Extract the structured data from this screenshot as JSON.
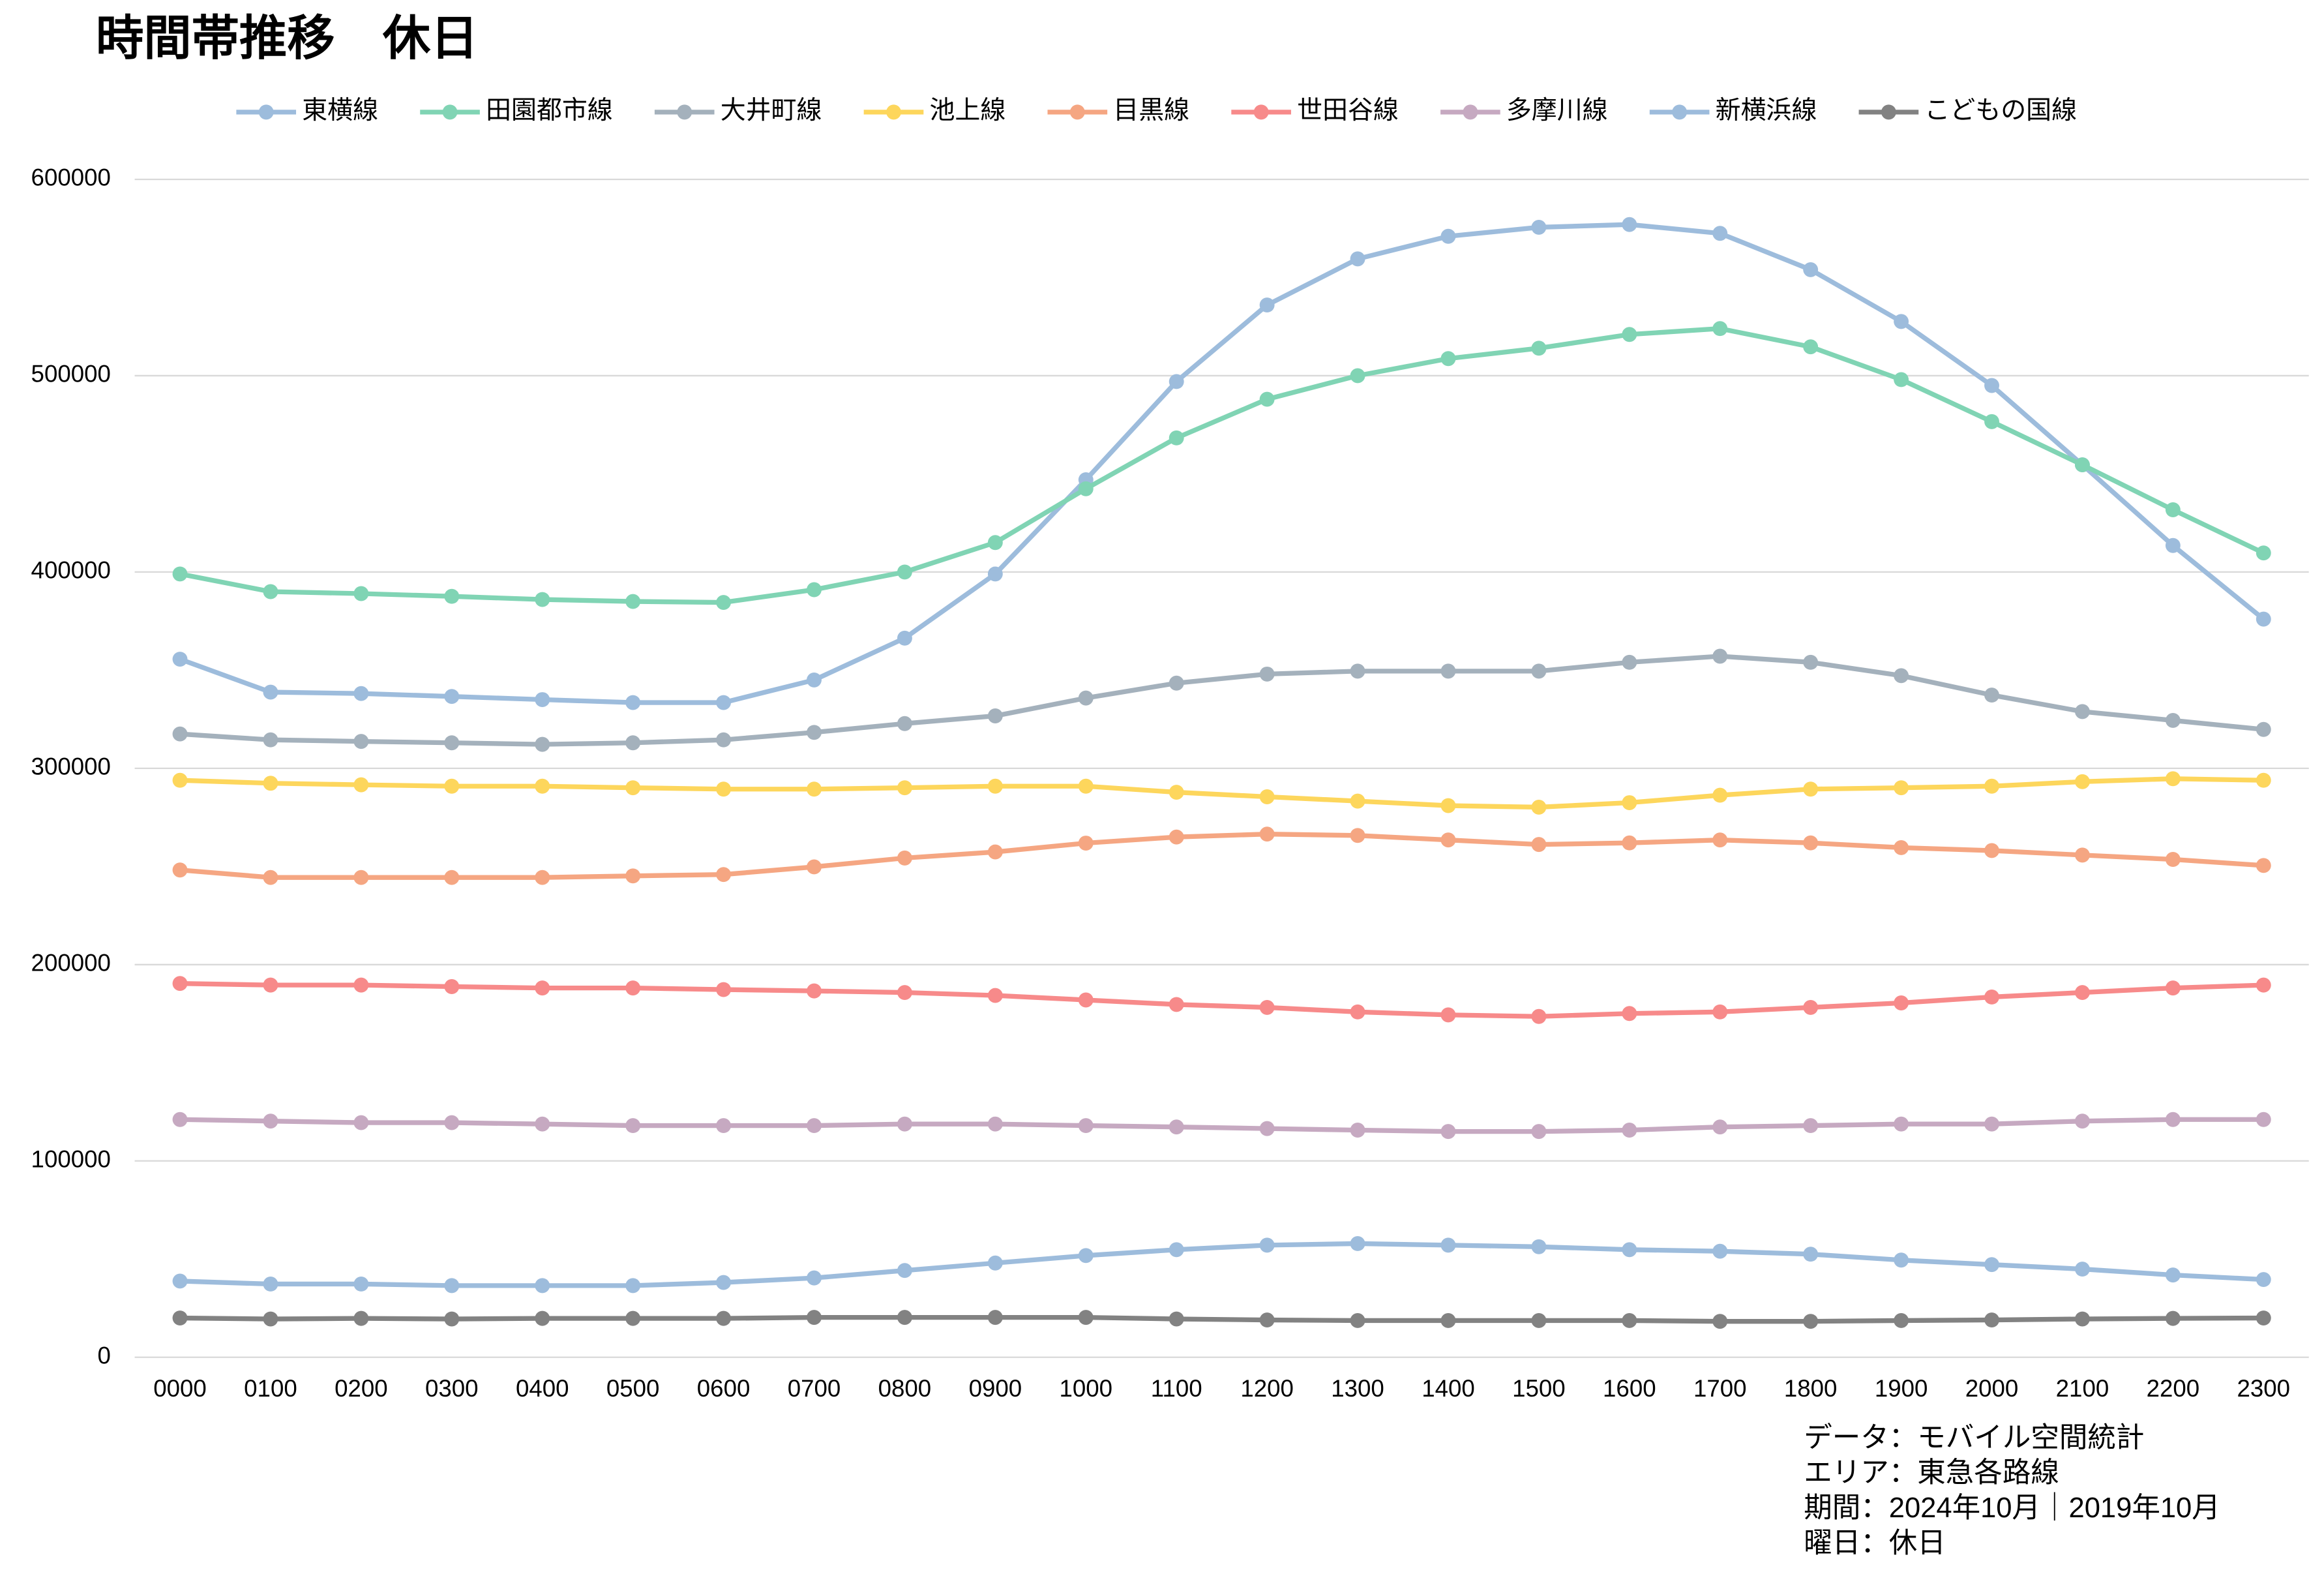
{
  "chart_data": {
    "type": "line",
    "title": "時間帯推移　休日",
    "categories": [
      "0000",
      "0100",
      "0200",
      "0300",
      "0400",
      "0500",
      "0600",
      "0700",
      "0800",
      "0900",
      "1000",
      "1100",
      "1200",
      "1300",
      "1400",
      "1500",
      "1600",
      "1700",
      "1800",
      "1900",
      "2000",
      "2100",
      "2200",
      "2300"
    ],
    "ylim": [
      0,
      600000
    ],
    "yticks": [
      0,
      100000,
      200000,
      300000,
      400000,
      500000,
      600000
    ],
    "grid": true,
    "legend": "top",
    "series": [
      {
        "name": "東横線",
        "color": "#9dbcdc",
        "values": [
          355600,
          338800,
          338100,
          336600,
          335000,
          333500,
          333500,
          345000,
          366300,
          399000,
          447000,
          497000,
          536000,
          559500,
          571000,
          575600,
          577000,
          572500,
          554000,
          527600,
          495000,
          454600,
          413500,
          376000
        ]
      },
      {
        "name": "田園都市線",
        "color": "#80d4b4",
        "values": [
          399000,
          390000,
          389000,
          387600,
          386000,
          385000,
          384500,
          391000,
          400000,
          415000,
          442400,
          468300,
          488000,
          500000,
          508700,
          514000,
          521000,
          524000,
          514700,
          498000,
          476600,
          454600,
          431700,
          409700
        ]
      },
      {
        "name": "大井町線",
        "color": "#a4b1bc",
        "values": [
          317500,
          314500,
          313700,
          313000,
          312200,
          313000,
          314500,
          318300,
          322800,
          326700,
          335800,
          343400,
          348000,
          349500,
          349500,
          349500,
          354000,
          357100,
          354000,
          347200,
          337300,
          328900,
          324400,
          319800
        ]
      },
      {
        "name": "池上線",
        "color": "#fdd65c",
        "values": [
          293900,
          292400,
          291600,
          290900,
          290900,
          290100,
          289400,
          289400,
          290100,
          290900,
          290900,
          287800,
          285500,
          283300,
          281000,
          280200,
          282500,
          286300,
          289400,
          290100,
          290900,
          293200,
          294700,
          293900
        ]
      },
      {
        "name": "目黒線",
        "color": "#f5a682",
        "values": [
          248200,
          244400,
          244400,
          244400,
          244400,
          245200,
          245900,
          249800,
          254300,
          257400,
          261900,
          265000,
          266500,
          265800,
          263500,
          261200,
          262000,
          263500,
          262000,
          259600,
          258100,
          255800,
          253600,
          250500
        ]
      },
      {
        "name": "世田谷線",
        "color": "#f78a8a",
        "values": [
          190400,
          189600,
          189600,
          188800,
          188100,
          188100,
          187300,
          186600,
          185800,
          184300,
          182000,
          179700,
          178200,
          175900,
          174400,
          173600,
          175100,
          175900,
          178200,
          180500,
          183500,
          185800,
          188100,
          189600
        ]
      },
      {
        "name": "多摩川線",
        "color": "#c6a9c1",
        "values": [
          121100,
          120300,
          119500,
          119500,
          118800,
          118000,
          118000,
          118000,
          118800,
          118800,
          118000,
          117300,
          116500,
          115700,
          115000,
          115000,
          115700,
          117300,
          118000,
          118800,
          118800,
          120300,
          121100,
          121100
        ]
      },
      {
        "name": "新横浜線",
        "color": "#9dbcdc",
        "values": [
          38800,
          37300,
          37300,
          36500,
          36500,
          36500,
          38100,
          40400,
          44200,
          48000,
          51800,
          54800,
          57100,
          57900,
          57100,
          56300,
          54800,
          54000,
          52500,
          49500,
          47200,
          44900,
          41900,
          39600
        ]
      },
      {
        "name": "こどもの国線",
        "color": "#828282",
        "values": [
          20000,
          19500,
          19800,
          19500,
          19800,
          19800,
          19800,
          20300,
          20300,
          20300,
          20300,
          19500,
          19000,
          18700,
          18700,
          18700,
          18700,
          18300,
          18300,
          18700,
          19000,
          19500,
          19800,
          20000
        ]
      }
    ],
    "notes": [
      "データ：モバイル空間統計",
      "エリア：東急各路線",
      "期間：2024年10月｜2019年10月",
      "曜日：休日"
    ]
  }
}
